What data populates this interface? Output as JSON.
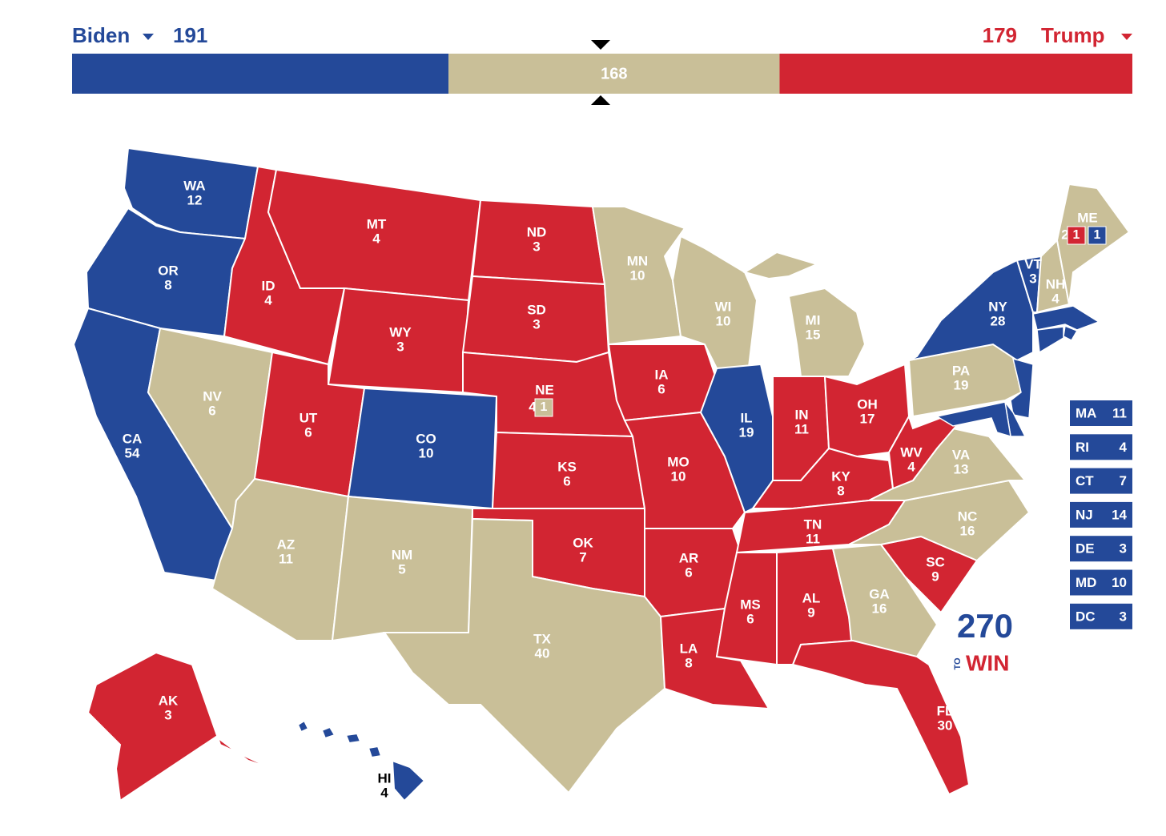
{
  "header": {
    "left": {
      "name": "Biden",
      "votes": 191,
      "color": "#244999"
    },
    "middle": {
      "votes": 168,
      "color": "#c9bf98"
    },
    "right": {
      "name": "Trump",
      "votes": 179,
      "color": "#d22532"
    }
  },
  "states": [
    {
      "abbr": "WA",
      "votes": 12,
      "color": "#244999"
    },
    {
      "abbr": "OR",
      "votes": 8,
      "color": "#244999"
    },
    {
      "abbr": "CA",
      "votes": 54,
      "color": "#244999"
    },
    {
      "abbr": "NV",
      "votes": 6,
      "color": "#c9bf98"
    },
    {
      "abbr": "ID",
      "votes": 4,
      "color": "#d22532"
    },
    {
      "abbr": "MT",
      "votes": 4,
      "color": "#d22532"
    },
    {
      "abbr": "WY",
      "votes": 3,
      "color": "#d22532"
    },
    {
      "abbr": "UT",
      "votes": 6,
      "color": "#d22532"
    },
    {
      "abbr": "CO",
      "votes": 10,
      "color": "#244999"
    },
    {
      "abbr": "AZ",
      "votes": 11,
      "color": "#c9bf98"
    },
    {
      "abbr": "NM",
      "votes": 5,
      "color": "#c9bf98"
    },
    {
      "abbr": "ND",
      "votes": 3,
      "color": "#d22532"
    },
    {
      "abbr": "SD",
      "votes": 3,
      "color": "#d22532"
    },
    {
      "abbr": "NE",
      "votes": 4,
      "color": "#d22532",
      "districts": [
        {
          "votes": 1,
          "color": "#c9bf98"
        }
      ]
    },
    {
      "abbr": "KS",
      "votes": 6,
      "color": "#d22532"
    },
    {
      "abbr": "OK",
      "votes": 7,
      "color": "#d22532"
    },
    {
      "abbr": "TX",
      "votes": 40,
      "color": "#c9bf98"
    },
    {
      "abbr": "MN",
      "votes": 10,
      "color": "#c9bf98"
    },
    {
      "abbr": "IA",
      "votes": 6,
      "color": "#d22532"
    },
    {
      "abbr": "MO",
      "votes": 10,
      "color": "#d22532"
    },
    {
      "abbr": "AR",
      "votes": 6,
      "color": "#d22532"
    },
    {
      "abbr": "LA",
      "votes": 8,
      "color": "#d22532"
    },
    {
      "abbr": "WI",
      "votes": 10,
      "color": "#c9bf98"
    },
    {
      "abbr": "IL",
      "votes": 19,
      "color": "#244999"
    },
    {
      "abbr": "MI",
      "votes": 15,
      "color": "#c9bf98"
    },
    {
      "abbr": "IN",
      "votes": 11,
      "color": "#d22532"
    },
    {
      "abbr": "OH",
      "votes": 17,
      "color": "#d22532"
    },
    {
      "abbr": "KY",
      "votes": 8,
      "color": "#d22532"
    },
    {
      "abbr": "TN",
      "votes": 11,
      "color": "#d22532"
    },
    {
      "abbr": "MS",
      "votes": 6,
      "color": "#d22532"
    },
    {
      "abbr": "AL",
      "votes": 9,
      "color": "#d22532"
    },
    {
      "abbr": "GA",
      "votes": 16,
      "color": "#c9bf98"
    },
    {
      "abbr": "FL",
      "votes": 30,
      "color": "#d22532"
    },
    {
      "abbr": "SC",
      "votes": 9,
      "color": "#d22532"
    },
    {
      "abbr": "NC",
      "votes": 16,
      "color": "#c9bf98"
    },
    {
      "abbr": "VA",
      "votes": 13,
      "color": "#c9bf98"
    },
    {
      "abbr": "WV",
      "votes": 4,
      "color": "#d22532"
    },
    {
      "abbr": "PA",
      "votes": 19,
      "color": "#c9bf98"
    },
    {
      "abbr": "NY",
      "votes": 28,
      "color": "#244999"
    },
    {
      "abbr": "VT",
      "votes": 3,
      "color": "#244999"
    },
    {
      "abbr": "NH",
      "votes": 4,
      "color": "#c9bf98"
    },
    {
      "abbr": "ME",
      "votes": 2,
      "color": "#c9bf98",
      "districts": [
        {
          "votes": 1,
          "color": "#d22532"
        },
        {
          "votes": 1,
          "color": "#244999"
        }
      ]
    },
    {
      "abbr": "AK",
      "votes": 3,
      "color": "#d22532"
    },
    {
      "abbr": "HI",
      "votes": 4,
      "color": "#244999"
    }
  ],
  "small_states": [
    {
      "abbr": "MA",
      "votes": 11,
      "color": "#244999"
    },
    {
      "abbr": "RI",
      "votes": 4,
      "color": "#244999"
    },
    {
      "abbr": "CT",
      "votes": 7,
      "color": "#244999"
    },
    {
      "abbr": "NJ",
      "votes": 14,
      "color": "#244999"
    },
    {
      "abbr": "DE",
      "votes": 3,
      "color": "#244999"
    },
    {
      "abbr": "MD",
      "votes": 10,
      "color": "#244999"
    },
    {
      "abbr": "DC",
      "votes": 3,
      "color": "#244999"
    }
  ],
  "logo": {
    "number": "270",
    "to": "TO",
    "win": "WIN"
  }
}
